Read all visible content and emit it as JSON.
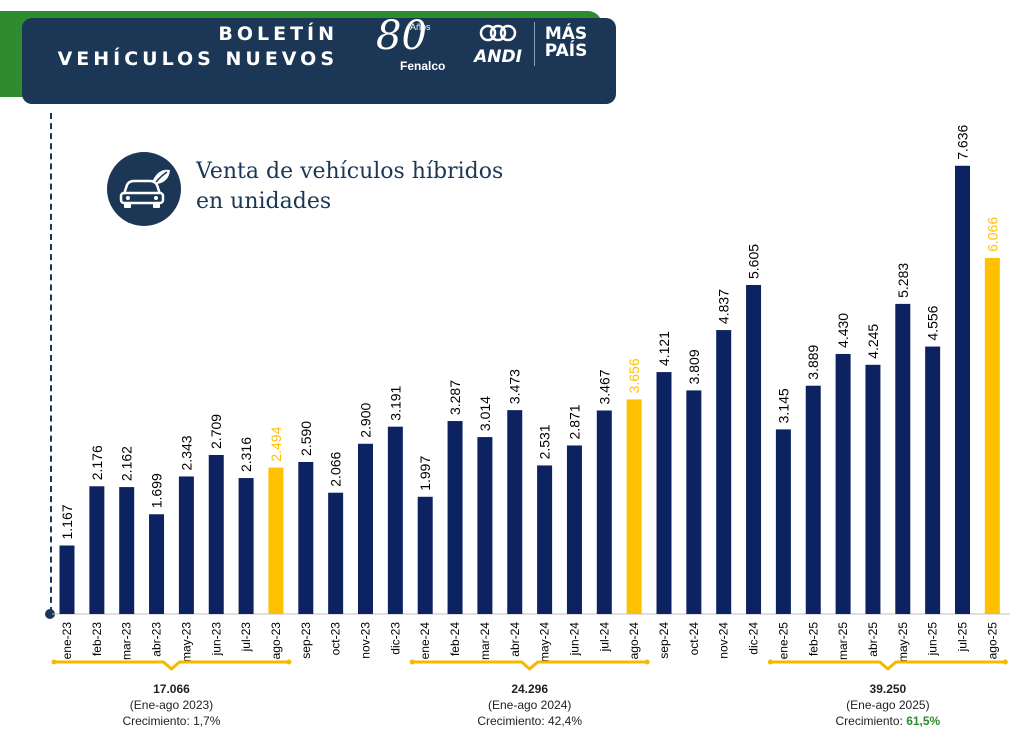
{
  "header": {
    "title_line1": "BOLETÍN",
    "title_line2": "VEHÍCULOS NUEVOS",
    "logo_fenalco_number": "80",
    "logo_fenalco_anos": "Años",
    "logo_fenalco_name": "Fenalco",
    "logo_andi": "ANDI",
    "logo_mas": "MÁS",
    "logo_pais": "PAÍS"
  },
  "chart_title_line1": "Venta de vehículos híbridos",
  "chart_title_line2": "en unidades",
  "colors": {
    "navy": "#0d2260",
    "yellow": "#ffc000",
    "bracket": "#f5b800",
    "green": "#2e8b2e"
  },
  "chart_data": {
    "type": "bar",
    "title": "Venta de vehículos híbridos en unidades",
    "categories": [
      "ene-23",
      "feb-23",
      "mar-23",
      "abr-23",
      "may-23",
      "jun-23",
      "jul-23",
      "ago-23",
      "sep-23",
      "oct-23",
      "nov-23",
      "dic-23",
      "ene-24",
      "feb-24",
      "mar-24",
      "abr-24",
      "may-24",
      "jun-24",
      "jul-24",
      "ago-24",
      "sep-24",
      "oct-24",
      "nov-24",
      "dic-24",
      "ene-25",
      "feb-25",
      "mar-25",
      "abr-25",
      "may-25",
      "jun-25",
      "jul-25",
      "ago-25"
    ],
    "values": [
      1167,
      2176,
      2162,
      1699,
      2343,
      2709,
      2316,
      2494,
      2590,
      2066,
      2900,
      3191,
      1997,
      3287,
      3014,
      3473,
      2531,
      2871,
      3467,
      3656,
      4121,
      3809,
      4837,
      5605,
      3145,
      3889,
      4430,
      4245,
      5283,
      4556,
      7636,
      6066
    ],
    "value_labels": [
      "1.167",
      "2.176",
      "2.162",
      "1.699",
      "2.343",
      "2.709",
      "2.316",
      "2.494",
      "2.590",
      "2.066",
      "2.900",
      "3.191",
      "1.997",
      "3.287",
      "3.014",
      "3.473",
      "2.531",
      "2.871",
      "3.467",
      "3.656",
      "4.121",
      "3.809",
      "4.837",
      "5.605",
      "3.145",
      "3.889",
      "4.430",
      "4.245",
      "5.283",
      "4.556",
      "7.636",
      "6.066"
    ],
    "highlighted": [
      "ago-23",
      "ago-24",
      "ago-25"
    ],
    "ylim": [
      0,
      8000
    ],
    "summaries": [
      {
        "total": "17.066",
        "period": "(Ene-ago 2023)",
        "growth_label": "Crecimiento:",
        "growth_value": "1,7%",
        "from": 0,
        "to": 7,
        "highlight": false
      },
      {
        "total": "24.296",
        "period": "(Ene-ago 2024)",
        "growth_label": "Crecimiento:",
        "growth_value": "42,4%",
        "from": 12,
        "to": 19,
        "highlight": false
      },
      {
        "total": "39.250",
        "period": "(Ene-ago 2025)",
        "growth_label": "Crecimiento:",
        "growth_value": "61,5%",
        "from": 24,
        "to": 31,
        "highlight": true
      }
    ]
  }
}
